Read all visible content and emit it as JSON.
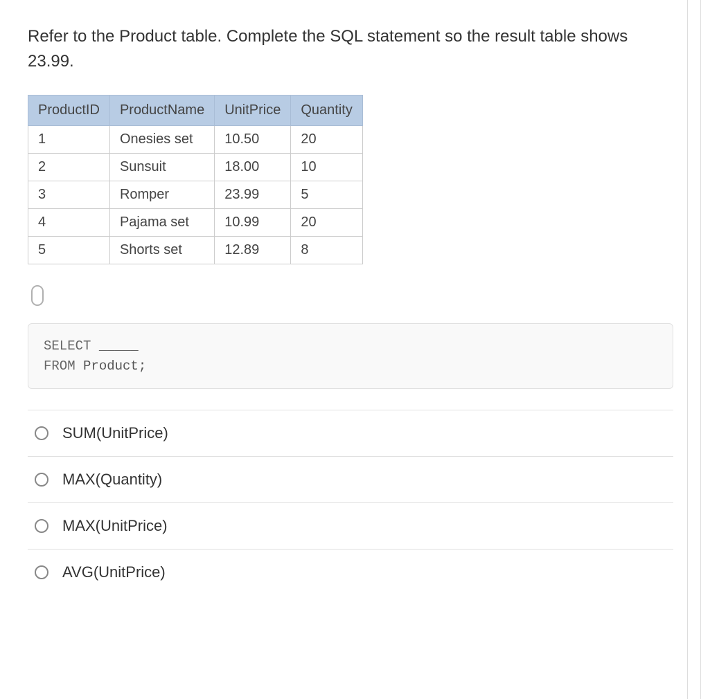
{
  "question": "Refer to the Product table. Complete the SQL statement so the result table shows 23.99.",
  "table": {
    "headers": [
      "ProductID",
      "ProductName",
      "UnitPrice",
      "Quantity"
    ],
    "rows": [
      [
        "1",
        "Onesies set",
        "10.50",
        "20"
      ],
      [
        "2",
        "Sunsuit",
        "18.00",
        "10"
      ],
      [
        "3",
        "Romper",
        "23.99",
        "5"
      ],
      [
        "4",
        "Pajama set",
        "10.99",
        "20"
      ],
      [
        "5",
        "Shorts set",
        "12.89",
        "8"
      ]
    ],
    "header_bg": "#b8cce4",
    "header_border": "#a9bdd6",
    "cell_border": "#cccccc",
    "text_color": "#444444",
    "header_fontsize": 20,
    "cell_fontsize": 20
  },
  "code": {
    "line1_keyword": "SELECT",
    "line1_blank": " _____",
    "line2_keyword": "FROM",
    "line2_text": " Product;",
    "bg": "#f9f9f9",
    "border": "#e0e0e0",
    "fontsize": 19
  },
  "options": [
    {
      "label": "SUM(UnitPrice)"
    },
    {
      "label": "MAX(Quantity)"
    },
    {
      "label": "MAX(UnitPrice)"
    },
    {
      "label": "AVG(UnitPrice)"
    }
  ],
  "colors": {
    "background": "#ffffff",
    "text": "#333333",
    "divider": "#e0e0e0",
    "radio_border": "#888888"
  }
}
